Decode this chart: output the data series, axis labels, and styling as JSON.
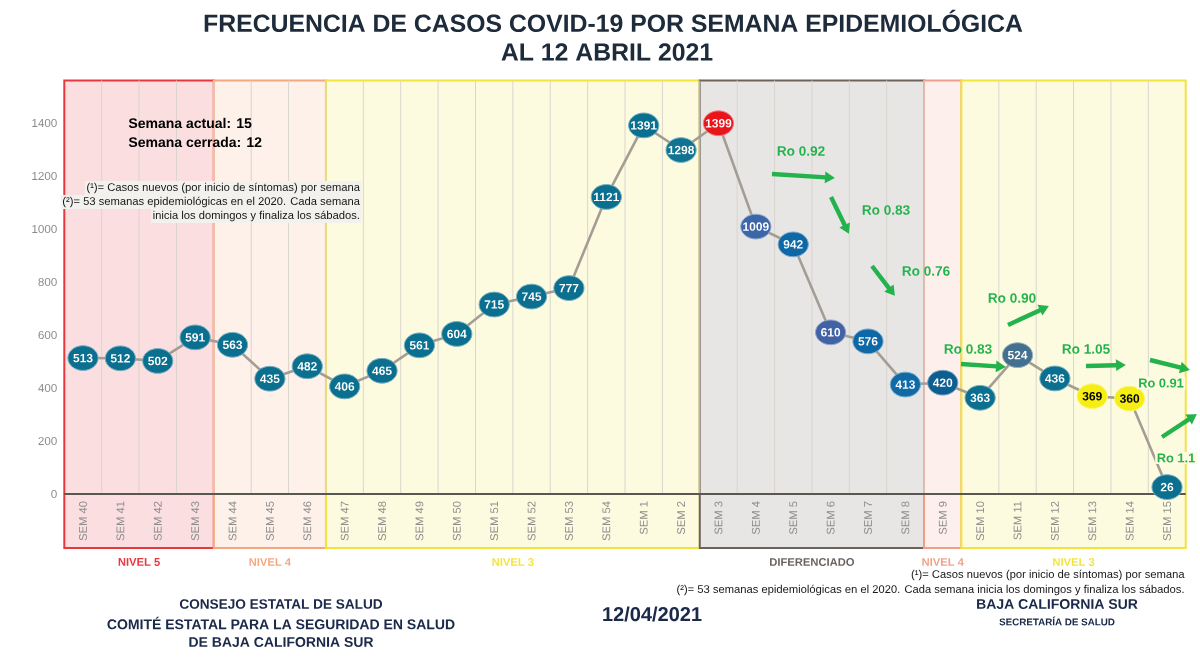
{
  "chart_data": {
    "type": "line",
    "title": "FRECUENCIA DE CASOS COVID-19 POR SEMANA EPIDEMIOLÓGICA",
    "subtitle": "AL 12 ABRIL 2021",
    "categories": [
      "SEM 40",
      "SEM 41",
      "SEM 42",
      "SEM 43",
      "SEM 44",
      "SEM 45",
      "SEM 46",
      "SEM 47",
      "SEM 48",
      "SEM 49",
      "SEM 50",
      "SEM 51",
      "SEM 52",
      "SEM 53",
      "SEM 54",
      "SEM 1",
      "SEM 2",
      "SEM 3",
      "SEM 4",
      "SEM 5",
      "SEM 6",
      "SEM 7",
      "SEM 8",
      "SEM 9",
      "SEM 10",
      "SEM 11",
      "SEM 12",
      "SEM 13",
      "SEM 14",
      "SEM 15"
    ],
    "series": [
      {
        "color": "#a39d94",
        "values": [
          513,
          512,
          502,
          591,
          563,
          435,
          482,
          406,
          465,
          561,
          604,
          715,
          745,
          777,
          1121,
          1391,
          1298,
          1399,
          1009,
          942,
          610,
          576,
          413,
          420,
          363,
          524,
          436,
          369,
          360,
          26
        ],
        "colors": [
          "#0b6f8f",
          "#0b6f8f",
          "#0b6f8f",
          "#0b6f8f",
          "#0b6f8f",
          "#0b6f8f",
          "#0b6f8f",
          "#0b6f8f",
          "#0b6f8f",
          "#0b6f8f",
          "#0b6f8f",
          "#0b6f8f",
          "#0b6f8f",
          "#0b6f8f",
          "#0b6f8f",
          "#0b6f8f",
          "#117393",
          "#e8151b",
          "#3d66a8",
          "#0f68a6",
          "#4163a6",
          "#0f68a6",
          "#0f6aa6",
          "#0d5f92",
          "#0b6f8f",
          "#43708f",
          "#0b6f8f",
          "#f6ee12",
          "#f6ee12",
          "#0b6f8f"
        ]
      }
    ],
    "ylim": [
      0,
      1560
    ],
    "yticks": [
      0,
      200,
      400,
      600,
      800,
      1000,
      1200,
      1400
    ],
    "grid": "x",
    "marker": "circle",
    "data_labels": true,
    "bands": [
      {
        "axis": "x",
        "from": "SEM 40",
        "to": "SEM 43",
        "label": "NIVEL 5",
        "color": "#e8383d"
      },
      {
        "axis": "x",
        "from": "SEM 44",
        "to": "SEM 46",
        "label": "NIVEL 4",
        "color": "#f4a77e"
      },
      {
        "axis": "x",
        "from": "SEM 47",
        "to": "SEM 2",
        "label": "NIVEL 3",
        "color": "#f2e43a"
      },
      {
        "axis": "x",
        "from": "SEM 3",
        "to": "SEM 8",
        "label": "DIFERENCIADO",
        "color": "#6a625b"
      },
      {
        "axis": "x",
        "from": "SEM 9",
        "to": "SEM 9",
        "label": "NIVEL 4",
        "color": "#f0a08a"
      },
      {
        "axis": "x",
        "from": "SEM 10",
        "to": "SEM 15",
        "label": "NIVEL 3",
        "color": "#f2e43a"
      }
    ],
    "annotations": [
      "Semana actual: 15",
      "Semana cerrada: 12",
      "(¹)= Casos nuevos (por inicio de síntomas) por semana",
      "(²)= 53 semanas epidemiológicas en el 2020. Cada semana",
      "inicia los domingos y finaliza los sábados.",
      "Ro 0.92",
      "Ro 0.83",
      "Ro 0.76",
      "Ro 0.90",
      "Ro 0.83",
      "Ro 1.05",
      "Ro 0.91",
      "Ro 1.1",
      "(¹)= Casos nuevos (por inicio de síntomas) por semana",
      "(²)= 53 semanas epidemiológicas en el 2020. Cada semana inicia los domingos y finaliza los sábados.",
      "CONSEJO ESTATAL DE SALUD",
      "COMITÉ ESTATAL PARA LA SEGURIDAD EN SALUD",
      "DE BAJA CALIFORNIA SUR",
      "12/04/2021",
      "BAJA CALIFORNIA SUR",
      "SECRETARÍA DE SALUD"
    ]
  }
}
